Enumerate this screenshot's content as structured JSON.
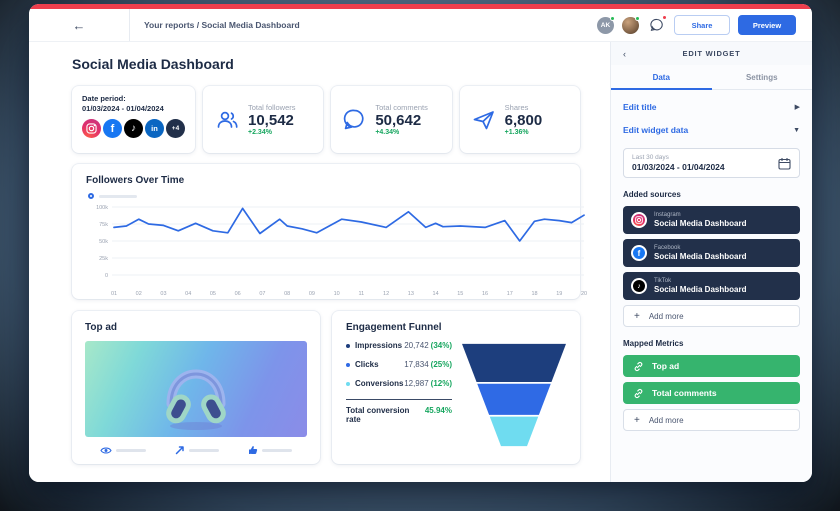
{
  "topbar": {
    "breadcrumb": "Your reports / Social Media Dashboard",
    "avatar_initials": "AK",
    "share_label": "Share",
    "preview_label": "Preview"
  },
  "main": {
    "title": "Social Media Dashboard",
    "date_card": {
      "label": "Date period:",
      "range": "01/03/2024 - 01/04/2024",
      "networks": [
        "Instagram",
        "Facebook",
        "TikTok",
        "LinkedIn"
      ],
      "extra_count": "+4",
      "facebook_glyph": "f",
      "tiktok_glyph": "♪",
      "linkedin_glyph": "in"
    },
    "stats": [
      {
        "label": "Total followers",
        "value": "10,542",
        "delta": "+2.34%"
      },
      {
        "label": "Total comments",
        "value": "50,642",
        "delta": "+4.34%"
      },
      {
        "label": "Shares",
        "value": "6,800",
        "delta": "+1.36%"
      }
    ],
    "top_ad": {
      "title": "Top ad"
    },
    "funnel": {
      "title": "Engagement Funnel",
      "rows": [
        {
          "label": "Impressions",
          "value": "20,742",
          "pct": "(34%)",
          "color": "#1d3e7d"
        },
        {
          "label": "Clicks",
          "value": "17,834",
          "pct": "(25%)",
          "color": "#2f6ae5"
        },
        {
          "label": "Conversions",
          "value": "12,987",
          "pct": "(12%)",
          "color": "#6fdcf0"
        }
      ],
      "total_label": "Total conversion rate",
      "total_value": "45.94%"
    }
  },
  "chart_data": {
    "type": "line",
    "title": "Followers Over Time",
    "x": [
      1,
      1.5,
      2,
      2.4,
      3,
      3.6,
      4.3,
      5,
      5.6,
      6.2,
      6.9,
      7.7,
      8,
      8.6,
      9.2,
      10.2,
      11,
      12,
      12.9,
      13.6,
      14,
      14.3,
      15,
      16,
      16.8,
      17.4,
      18,
      18.4,
      19,
      19.5,
      20
    ],
    "y": [
      70,
      72,
      82,
      75,
      73,
      65,
      76,
      65,
      62,
      98,
      61,
      82,
      72,
      68,
      62,
      82,
      78,
      70,
      93,
      70,
      76,
      71,
      72,
      70,
      80,
      50,
      79,
      82,
      80,
      77,
      88
    ],
    "x_ticks": [
      "01",
      "02",
      "03",
      "04",
      "05",
      "06",
      "07",
      "08",
      "09",
      "10",
      "11",
      "12",
      "13",
      "14",
      "15",
      "16",
      "17",
      "18",
      "19",
      "20"
    ],
    "y_ticks": [
      {
        "label": "100k",
        "value": 100
      },
      {
        "label": "75k",
        "value": 75
      },
      {
        "label": "50k",
        "value": 50
      },
      {
        "label": "25k",
        "value": 25
      },
      {
        "label": "0",
        "value": 0
      }
    ],
    "ylim": [
      0,
      100
    ],
    "xlabel": "",
    "ylabel": "",
    "grid": true,
    "legend_position": "top-left",
    "line_color": "#2e6ae3"
  },
  "panel": {
    "header": "EDIT WIDGET",
    "back_chevron": "‹",
    "tabs": [
      {
        "label": "Data",
        "active": true
      },
      {
        "label": "Settings",
        "active": false
      }
    ],
    "edit_title": {
      "label": "Edit title",
      "chevron": "▶"
    },
    "edit_widget_data": {
      "label": "Edit widget data",
      "chevron": "▼"
    },
    "date_field": {
      "label": "Last 30 days",
      "value": "01/03/2024 - 01/04/2024"
    },
    "added_sources_label": "Added sources",
    "sources": [
      {
        "network": "Instagram",
        "name": "Social Media Dashboard"
      },
      {
        "network": "Facebook",
        "name": "Social Media Dashboard"
      },
      {
        "network": "TikTok",
        "name": "Social Media Dashboard"
      }
    ],
    "add_sources_label": "Add more",
    "mapped_metrics_label": "Mapped Metrics",
    "metrics": [
      {
        "label": "Top ad"
      },
      {
        "label": "Total comments"
      }
    ],
    "add_metrics_label": "Add more"
  },
  "colors": {
    "accent_blue": "#2e6ae3",
    "success_green": "#17a65f",
    "metric_green": "#36b46e",
    "topbar_red": "#ee3e4d",
    "dark_navy": "#22304a"
  }
}
